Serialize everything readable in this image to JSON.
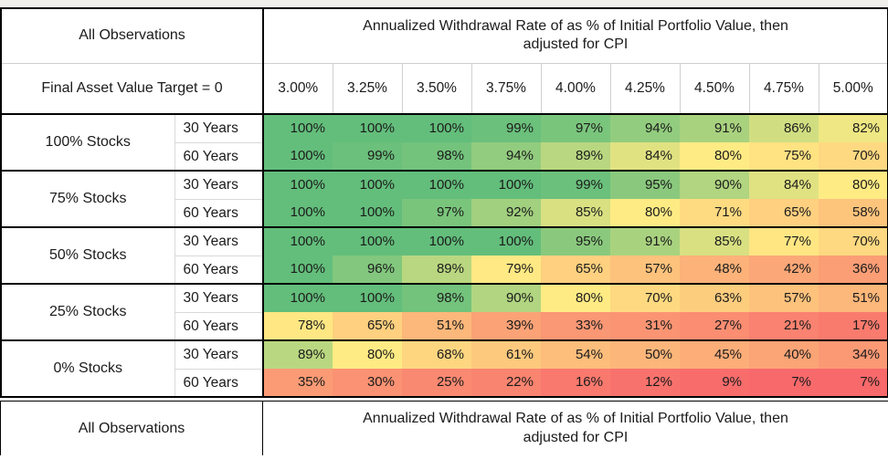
{
  "header": {
    "all_observations_label": "All Observations",
    "target_label": "Final Asset Value Target = 0",
    "title_line1": "Annualized Withdrawal Rate of as % of Initial Portfolio Value, then",
    "title_line2": "adjusted for CPI"
  },
  "footer": {
    "all_observations_label": "All Observations",
    "title_line1": "Annualized Withdrawal Rate of as % of Initial Portfolio Value, then",
    "title_line2": "adjusted for CPI"
  },
  "chart_data": {
    "type": "heatmap",
    "title": "Annualized Withdrawal Rate of as % of Initial Portfolio Value, then adjusted for CPI",
    "subtitle": "Final Asset Value Target = 0",
    "scope_label": "All Observations",
    "columns": [
      "3.00%",
      "3.25%",
      "3.50%",
      "3.75%",
      "4.00%",
      "4.25%",
      "4.50%",
      "4.75%",
      "5.00%"
    ],
    "value_suffix": "%",
    "rows": [
      {
        "group": "100% Stocks",
        "period": "30 Years",
        "values": [
          100,
          100,
          100,
          99,
          97,
          94,
          91,
          86,
          82
        ]
      },
      {
        "group": "100% Stocks",
        "period": "60 Years",
        "values": [
          100,
          99,
          98,
          94,
          89,
          84,
          80,
          75,
          70
        ]
      },
      {
        "group": "75% Stocks",
        "period": "30 Years",
        "values": [
          100,
          100,
          100,
          100,
          99,
          95,
          90,
          84,
          80
        ]
      },
      {
        "group": "75% Stocks",
        "period": "60 Years",
        "values": [
          100,
          100,
          97,
          92,
          85,
          80,
          71,
          65,
          58
        ]
      },
      {
        "group": "50% Stocks",
        "period": "30 Years",
        "values": [
          100,
          100,
          100,
          100,
          95,
          91,
          85,
          77,
          70
        ]
      },
      {
        "group": "50% Stocks",
        "period": "60 Years",
        "values": [
          100,
          96,
          89,
          79,
          65,
          57,
          48,
          42,
          36
        ]
      },
      {
        "group": "25% Stocks",
        "period": "30 Years",
        "values": [
          100,
          100,
          98,
          90,
          80,
          70,
          63,
          57,
          51
        ]
      },
      {
        "group": "25% Stocks",
        "period": "60 Years",
        "values": [
          78,
          65,
          51,
          39,
          33,
          31,
          27,
          21,
          17
        ]
      },
      {
        "group": "0% Stocks",
        "period": "30 Years",
        "values": [
          89,
          80,
          68,
          61,
          54,
          50,
          45,
          40,
          34
        ]
      },
      {
        "group": "0% Stocks",
        "period": "60 Years",
        "values": [
          35,
          30,
          25,
          22,
          16,
          12,
          9,
          7,
          7
        ]
      }
    ],
    "color_scale": {
      "min_value": 7,
      "min_color": "#F8696B",
      "mid_value": 80,
      "mid_color": "#FFEB84",
      "max_value": 100,
      "max_color": "#63BE7B"
    }
  }
}
